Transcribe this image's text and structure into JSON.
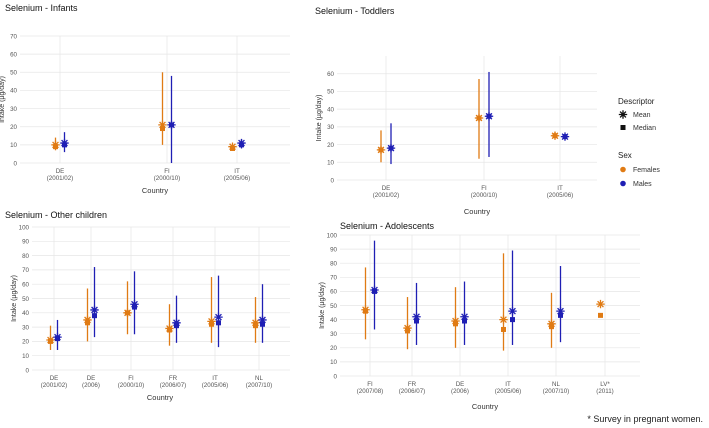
{
  "footnote": "* Survey in pregnant women.",
  "legend": {
    "descriptor_title": "Descriptor",
    "descriptor_items": [
      {
        "label": "Mean",
        "marker": "asterisk"
      },
      {
        "label": "Median",
        "marker": "square"
      }
    ],
    "sex_title": "Sex",
    "sex_items": [
      {
        "label": "Females",
        "color": "#E07B14"
      },
      {
        "label": "Males",
        "color": "#1F1FB4"
      }
    ]
  },
  "colors": {
    "females": "#E07B14",
    "males": "#1F1FB4",
    "grid": "#e6e6e6",
    "text": "#333333"
  },
  "chart_data": [
    {
      "type": "scatter",
      "title": "Selenium - Infants",
      "xlabel": "Country",
      "ylabel": "Intake (µg/day)",
      "ylim": [
        0,
        70
      ],
      "yticks": [
        0,
        10,
        20,
        30,
        40,
        50,
        60,
        70
      ],
      "categories": [
        [
          "DE",
          "(2001/02)"
        ],
        [
          "FI",
          "(2000/10)"
        ],
        [
          "IT",
          "(2005/06)"
        ]
      ],
      "series": [
        {
          "name": "Females",
          "range": [
            [
              7,
              14
            ],
            [
              10,
              50
            ],
            [
              7,
              10
            ]
          ],
          "mean": [
            10,
            21,
            9
          ],
          "median": [
            9,
            19,
            8
          ]
        },
        {
          "name": "Males",
          "range": [
            [
              6,
              17
            ],
            [
              0,
              48
            ],
            [
              8,
              13
            ]
          ],
          "mean": [
            11,
            21,
            11
          ],
          "median": [
            10,
            21,
            10
          ]
        }
      ]
    },
    {
      "type": "scatter",
      "title": "Selenium - Toddlers",
      "xlabel": "Country",
      "ylabel": "Intake (µg/day)",
      "ylim": [
        0,
        70
      ],
      "yticks": [
        0,
        10,
        20,
        30,
        40,
        50,
        60
      ],
      "categories": [
        [
          "DE",
          "(2001/02)"
        ],
        [
          "FI",
          "(2000/10)"
        ],
        [
          "IT",
          "(2005/06)"
        ]
      ],
      "series": [
        {
          "name": "Females",
          "range": [
            [
              10,
              28
            ],
            [
              12,
              57
            ],
            [
              24,
              27
            ]
          ],
          "mean": [
            17,
            35,
            25
          ],
          "median": [
            17,
            35,
            25
          ]
        },
        {
          "name": "Males",
          "range": [
            [
              9,
              32
            ],
            [
              13,
              61
            ],
            [
              23,
              26
            ]
          ],
          "mean": [
            18,
            36,
            24.5
          ],
          "median": [
            18,
            36,
            24.5
          ]
        }
      ]
    },
    {
      "type": "scatter",
      "title": "Selenium - Other children",
      "xlabel": "Country",
      "ylabel": "Intake (µg/day)",
      "ylim": [
        0,
        100
      ],
      "yticks": [
        0,
        10,
        20,
        30,
        40,
        50,
        60,
        70,
        80,
        90,
        100
      ],
      "categories": [
        [
          "DE",
          "(2001/02)"
        ],
        [
          "DE",
          "(2006)"
        ],
        [
          "FI",
          "(2000/10)"
        ],
        [
          "FR",
          "(2006/07)"
        ],
        [
          "IT",
          "(2005/06)"
        ],
        [
          "NL",
          "(2007/10)"
        ]
      ],
      "series": [
        {
          "name": "Females",
          "range": [
            [
              14,
              31
            ],
            [
              20,
              57
            ],
            [
              25,
              62
            ],
            [
              17,
              46
            ],
            [
              19,
              65
            ],
            [
              19,
              51
            ]
          ],
          "mean": [
            21,
            35,
            40,
            29,
            34,
            33
          ],
          "median": [
            20,
            33,
            40,
            28,
            32,
            31
          ]
        },
        {
          "name": "Males",
          "range": [
            [
              14,
              35
            ],
            [
              23,
              72
            ],
            [
              25,
              69
            ],
            [
              19,
              52
            ],
            [
              16,
              66
            ],
            [
              19,
              60
            ]
          ],
          "mean": [
            23,
            42,
            46,
            33,
            37,
            35
          ],
          "median": [
            22,
            38,
            44,
            31,
            33,
            32
          ]
        }
      ]
    },
    {
      "type": "scatter",
      "title": "Selenium - Adolescents",
      "xlabel": "Country",
      "ylabel": "Intake (µg/day)",
      "ylim": [
        0,
        100
      ],
      "yticks": [
        0,
        10,
        20,
        30,
        40,
        50,
        60,
        70,
        80,
        90,
        100
      ],
      "categories": [
        [
          "FI",
          "(2007/08)"
        ],
        [
          "FR",
          "(2006/07)"
        ],
        [
          "DE",
          "(2006)"
        ],
        [
          "IT",
          "(2005/06)"
        ],
        [
          "NL",
          "(2007/10)"
        ],
        [
          "LV*",
          "(2011)"
        ]
      ],
      "series": [
        {
          "name": "Females",
          "range": [
            [
              26,
              77
            ],
            [
              19,
              56
            ],
            [
              20,
              63
            ],
            [
              18,
              87
            ],
            [
              20,
              59
            ],
            null
          ],
          "mean": [
            47,
            34,
            39,
            40,
            37,
            51
          ],
          "median": [
            46,
            32,
            37,
            33,
            35,
            43
          ]
        },
        {
          "name": "Males",
          "range": [
            [
              33,
              96
            ],
            [
              22,
              66
            ],
            [
              22,
              67
            ],
            [
              22,
              89
            ],
            [
              24,
              78
            ],
            null
          ],
          "mean": [
            61,
            42,
            42,
            46,
            46,
            null
          ],
          "median": [
            60,
            39,
            39,
            40,
            43,
            null
          ]
        }
      ]
    }
  ]
}
